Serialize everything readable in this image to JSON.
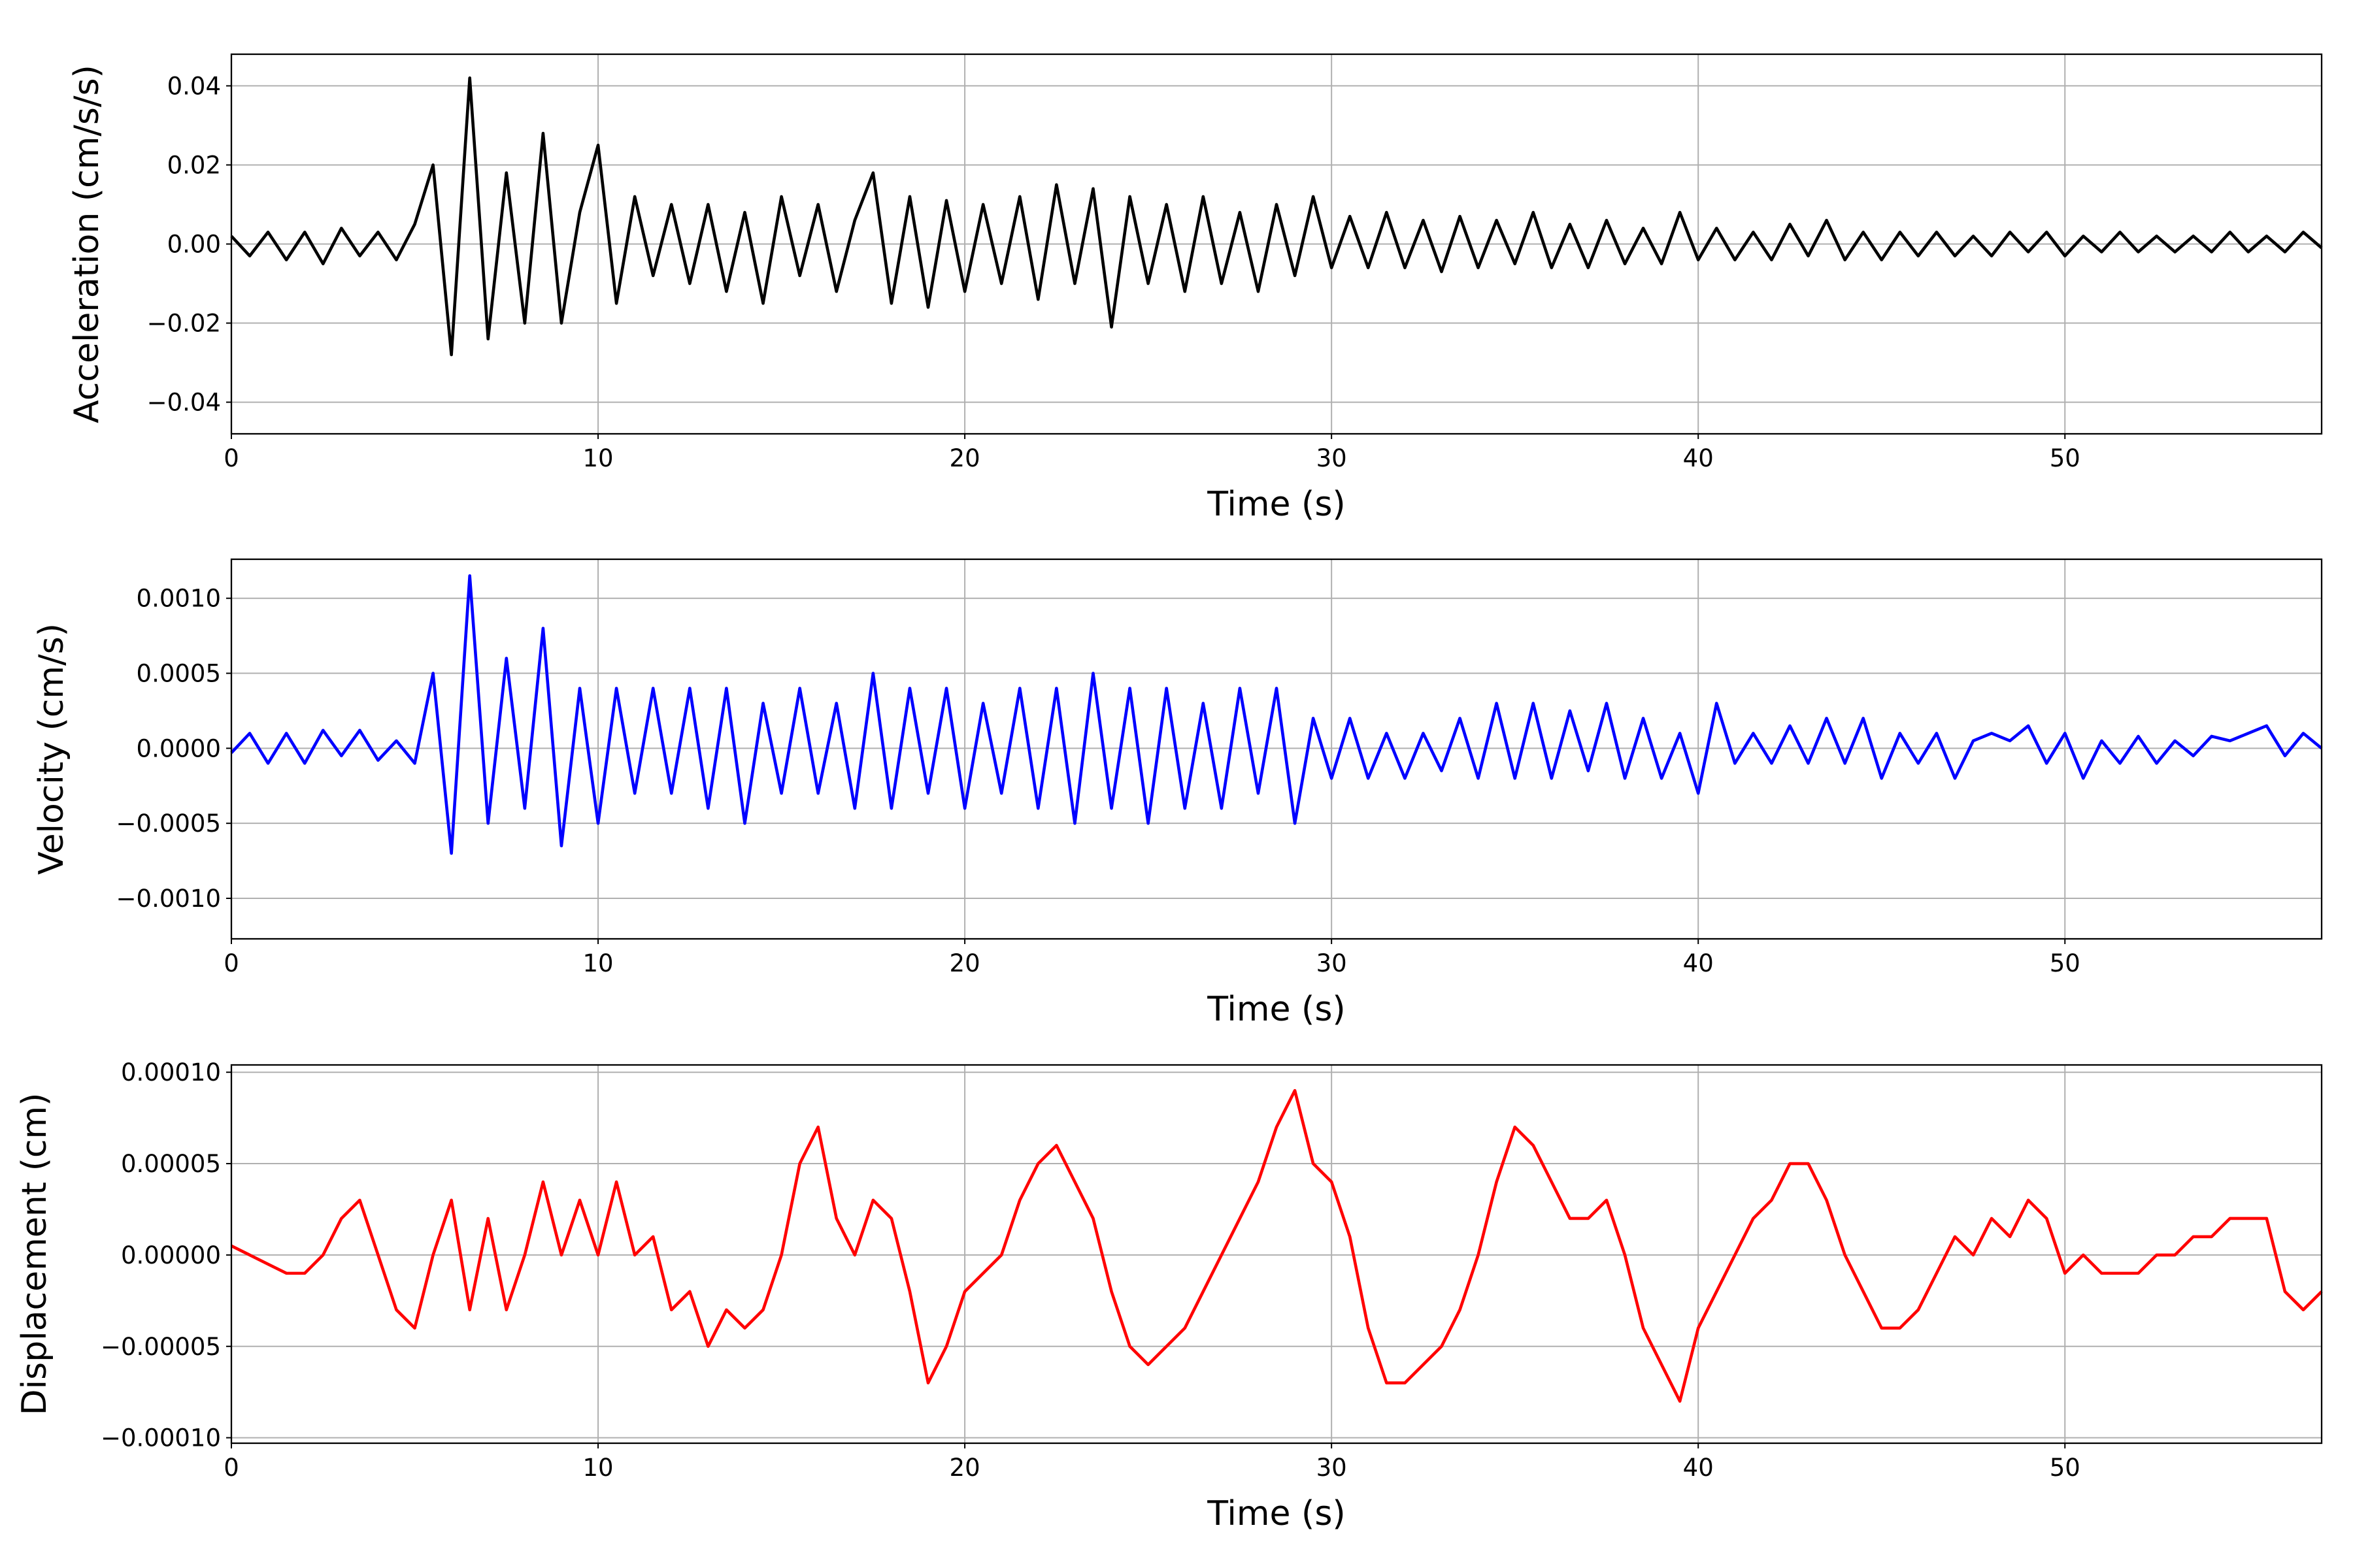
{
  "chart_data": [
    {
      "type": "line",
      "ylabel": "Acceleration (cm/s/s)",
      "xlabel": "Time (s)",
      "color": "#000000",
      "grid": true,
      "xlim": [
        0,
        57
      ],
      "xticks": [
        0,
        10,
        20,
        30,
        40,
        50
      ],
      "ylim": [
        -0.048,
        0.048
      ],
      "yticks": [
        {
          "value": -0.04,
          "label": "−0.04"
        },
        {
          "value": -0.02,
          "label": "−0.02"
        },
        {
          "value": 0,
          "label": "0.00"
        },
        0.02,
        0.04
      ],
      "x": [
        0,
        0.5,
        1,
        1.5,
        2,
        2.5,
        3,
        3.5,
        4,
        4.5,
        5,
        5.5,
        6,
        6.5,
        7,
        7.5,
        8,
        8.5,
        9,
        9.5,
        10,
        10.5,
        11,
        11.5,
        12,
        12.5,
        13,
        13.5,
        14,
        14.5,
        15,
        15.5,
        16,
        16.5,
        17,
        17.5,
        18,
        18.5,
        19,
        19.5,
        20,
        20.5,
        21,
        21.5,
        22,
        22.5,
        23,
        23.5,
        24,
        24.5,
        25,
        25.5,
        26,
        26.5,
        27,
        27.5,
        28,
        28.5,
        29,
        29.5,
        30,
        30.5,
        31,
        31.5,
        32,
        32.5,
        33,
        33.5,
        34,
        34.5,
        35,
        35.5,
        36,
        36.5,
        37,
        37.5,
        38,
        38.5,
        39,
        39.5,
        40,
        40.5,
        41,
        41.5,
        42,
        42.5,
        43,
        43.5,
        44,
        44.5,
        45,
        45.5,
        46,
        46.5,
        47,
        47.5,
        48,
        48.5,
        49,
        49.5,
        50,
        50.5,
        51,
        51.5,
        52,
        52.5,
        53,
        53.5,
        54,
        54.5,
        55,
        55.5,
        56,
        56.5,
        57
      ],
      "values": [
        0.002,
        -0.003,
        0.003,
        -0.004,
        0.003,
        -0.005,
        0.004,
        -0.003,
        0.003,
        -0.004,
        0.005,
        0.02,
        -0.028,
        0.042,
        -0.024,
        0.018,
        -0.02,
        0.028,
        -0.02,
        0.008,
        0.025,
        -0.015,
        0.012,
        -0.008,
        0.01,
        -0.01,
        0.01,
        -0.012,
        0.008,
        -0.015,
        0.012,
        -0.008,
        0.01,
        -0.012,
        0.006,
        0.018,
        -0.015,
        0.012,
        -0.016,
        0.011,
        -0.012,
        0.01,
        -0.01,
        0.012,
        -0.014,
        0.015,
        -0.01,
        0.014,
        -0.021,
        0.012,
        -0.01,
        0.01,
        -0.012,
        0.012,
        -0.01,
        0.008,
        -0.012,
        0.01,
        -0.008,
        0.012,
        -0.006,
        0.007,
        -0.006,
        0.008,
        -0.006,
        0.006,
        -0.007,
        0.007,
        -0.006,
        0.006,
        -0.005,
        0.008,
        -0.006,
        0.005,
        -0.006,
        0.006,
        -0.005,
        0.004,
        -0.005,
        0.008,
        -0.004,
        0.004,
        -0.004,
        0.003,
        -0.004,
        0.005,
        -0.003,
        0.006,
        -0.004,
        0.003,
        -0.004,
        0.003,
        -0.003,
        0.003,
        -0.003,
        0.002,
        -0.003,
        0.003,
        -0.002,
        0.003,
        -0.003,
        0.002,
        -0.002,
        0.003,
        -0.002,
        0.002,
        -0.002,
        0.002,
        -0.002,
        0.003,
        -0.002,
        0.002,
        -0.002,
        0.003,
        -0.001
      ]
    },
    {
      "type": "line",
      "ylabel": "Velocity (cm/s)",
      "xlabel": "Time (s)",
      "color": "#0000ff",
      "grid": true,
      "xlim": [
        0,
        57
      ],
      "xticks": [
        0,
        10,
        20,
        30,
        40,
        50
      ],
      "ylim": [
        -0.00127,
        0.00126
      ],
      "yticks": [
        {
          "value": -0.001,
          "label": "−0.0010"
        },
        {
          "value": -0.0005,
          "label": "−0.0005"
        },
        {
          "value": 0,
          "label": "0.0000"
        },
        0.0005,
        {
          "value": 0.001,
          "label": "0.0010"
        }
      ],
      "x": [
        0,
        0.5,
        1,
        1.5,
        2,
        2.5,
        3,
        3.5,
        4,
        4.5,
        5,
        5.5,
        6,
        6.5,
        7,
        7.5,
        8,
        8.5,
        9,
        9.5,
        10,
        10.5,
        11,
        11.5,
        12,
        12.5,
        13,
        13.5,
        14,
        14.5,
        15,
        15.5,
        16,
        16.5,
        17,
        17.5,
        18,
        18.5,
        19,
        19.5,
        20,
        20.5,
        21,
        21.5,
        22,
        22.5,
        23,
        23.5,
        24,
        24.5,
        25,
        25.5,
        26,
        26.5,
        27,
        27.5,
        28,
        28.5,
        29,
        29.5,
        30,
        30.5,
        31,
        31.5,
        32,
        32.5,
        33,
        33.5,
        34,
        34.5,
        35,
        35.5,
        36,
        36.5,
        37,
        37.5,
        38,
        38.5,
        39,
        39.5,
        40,
        40.5,
        41,
        41.5,
        42,
        42.5,
        43,
        43.5,
        44,
        44.5,
        45,
        45.5,
        46,
        46.5,
        47,
        47.5,
        48,
        48.5,
        49,
        49.5,
        50,
        50.5,
        51,
        51.5,
        52,
        52.5,
        53,
        53.5,
        54,
        54.5,
        55,
        55.5,
        56,
        56.5,
        57
      ],
      "values": [
        -3e-05,
        0.0001,
        -0.0001,
        0.0001,
        -0.0001,
        0.00012,
        -5e-05,
        0.00012,
        -8e-05,
        5e-05,
        -0.0001,
        0.0005,
        -0.0007,
        0.00115,
        -0.0005,
        0.0006,
        -0.0004,
        0.0008,
        -0.00065,
        0.0004,
        -0.0005,
        0.0004,
        -0.0003,
        0.0004,
        -0.0003,
        0.0004,
        -0.0004,
        0.0004,
        -0.0005,
        0.0003,
        -0.0003,
        0.0004,
        -0.0003,
        0.0003,
        -0.0004,
        0.0005,
        -0.0004,
        0.0004,
        -0.0003,
        0.0004,
        -0.0004,
        0.0003,
        -0.0003,
        0.0004,
        -0.0004,
        0.0004,
        -0.0005,
        0.0005,
        -0.0004,
        0.0004,
        -0.0005,
        0.0004,
        -0.0004,
        0.0003,
        -0.0004,
        0.0004,
        -0.0003,
        0.0004,
        -0.0005,
        0.0002,
        -0.0002,
        0.0002,
        -0.0002,
        0.0001,
        -0.0002,
        0.0001,
        -0.00015,
        0.0002,
        -0.0002,
        0.0003,
        -0.0002,
        0.0003,
        -0.0002,
        0.00025,
        -0.00015,
        0.0003,
        -0.0002,
        0.0002,
        -0.0002,
        0.0001,
        -0.0003,
        0.0003,
        -0.0001,
        0.0001,
        -0.0001,
        0.00015,
        -0.0001,
        0.0002,
        -0.0001,
        0.0002,
        -0.0002,
        0.0001,
        -0.0001,
        0.0001,
        -0.0002,
        5e-05,
        0.0001,
        5e-05,
        0.00015,
        -0.0001,
        0.0001,
        -0.0002,
        5e-05,
        -0.0001,
        8e-05,
        -0.0001,
        5e-05,
        -5e-05,
        8e-05,
        5e-05,
        0.0001,
        0.00015,
        -5e-05,
        0.0001,
        0
      ]
    },
    {
      "type": "line",
      "ylabel": "Displacement (cm)",
      "xlabel": "Time (s)",
      "color": "#ff0000",
      "grid": true,
      "xlim": [
        0,
        57
      ],
      "xticks": [
        0,
        10,
        20,
        30,
        40,
        50
      ],
      "ylim": [
        -0.000103,
        0.000104
      ],
      "yticks": [
        {
          "value": -0.0001,
          "label": "−0.00010"
        },
        {
          "value": -5e-05,
          "label": "−0.00005"
        },
        {
          "value": 0,
          "label": "0.00000"
        },
        5e-05,
        {
          "value": 0.0001,
          "label": "0.00010"
        }
      ],
      "x": [
        0,
        0.5,
        1,
        1.5,
        2,
        2.5,
        3,
        3.5,
        4,
        4.5,
        5,
        5.5,
        6,
        6.5,
        7,
        7.5,
        8,
        8.5,
        9,
        9.5,
        10,
        10.5,
        11,
        11.5,
        12,
        12.5,
        13,
        13.5,
        14,
        14.5,
        15,
        15.5,
        16,
        16.5,
        17,
        17.5,
        18,
        18.5,
        19,
        19.5,
        20,
        20.5,
        21,
        21.5,
        22,
        22.5,
        23,
        23.5,
        24,
        24.5,
        25,
        25.5,
        26,
        26.5,
        27,
        27.5,
        28,
        28.5,
        29,
        29.5,
        30,
        30.5,
        31,
        31.5,
        32,
        32.5,
        33,
        33.5,
        34,
        34.5,
        35,
        35.5,
        36,
        36.5,
        37,
        37.5,
        38,
        38.5,
        39,
        39.5,
        40,
        40.5,
        41,
        41.5,
        42,
        42.5,
        43,
        43.5,
        44,
        44.5,
        45,
        45.5,
        46,
        46.5,
        47,
        47.5,
        48,
        48.5,
        49,
        49.5,
        50,
        50.5,
        51,
        51.5,
        52,
        52.5,
        53,
        53.5,
        54,
        54.5,
        55,
        55.5,
        56,
        56.5,
        57
      ],
      "values": [
        5e-06,
        0,
        -5e-06,
        -1e-05,
        -1e-05,
        0,
        2e-05,
        3e-05,
        0,
        -3e-05,
        -4e-05,
        0,
        3e-05,
        -3e-05,
        2e-05,
        -3e-05,
        0,
        4e-05,
        0,
        3e-05,
        0,
        4e-05,
        0,
        1e-05,
        -3e-05,
        -2e-05,
        -5e-05,
        -3e-05,
        -4e-05,
        -3e-05,
        0,
        5e-05,
        7e-05,
        2e-05,
        0,
        3e-05,
        2e-05,
        -2e-05,
        -7e-05,
        -5e-05,
        -2e-05,
        -1e-05,
        0,
        3e-05,
        5e-05,
        6e-05,
        4e-05,
        2e-05,
        -2e-05,
        -5e-05,
        -6e-05,
        -5e-05,
        -4e-05,
        -2e-05,
        0,
        2e-05,
        4e-05,
        7e-05,
        9e-05,
        5e-05,
        4e-05,
        1e-05,
        -4e-05,
        -7e-05,
        -7e-05,
        -6e-05,
        -5e-05,
        -3e-05,
        0,
        4e-05,
        7e-05,
        6e-05,
        4e-05,
        2e-05,
        2e-05,
        3e-05,
        0,
        -4e-05,
        -6e-05,
        -8e-05,
        -4e-05,
        -2e-05,
        0,
        2e-05,
        3e-05,
        5e-05,
        5e-05,
        3e-05,
        0,
        -2e-05,
        -4e-05,
        -4e-05,
        -3e-05,
        -1e-05,
        1e-05,
        0,
        2e-05,
        1e-05,
        3e-05,
        2e-05,
        -1e-05,
        0,
        -1e-05,
        -1e-05,
        -1e-05,
        0,
        0,
        1e-05,
        1e-05,
        2e-05,
        2e-05,
        2e-05,
        -2e-05,
        -3e-05,
        -2e-05
      ]
    }
  ]
}
